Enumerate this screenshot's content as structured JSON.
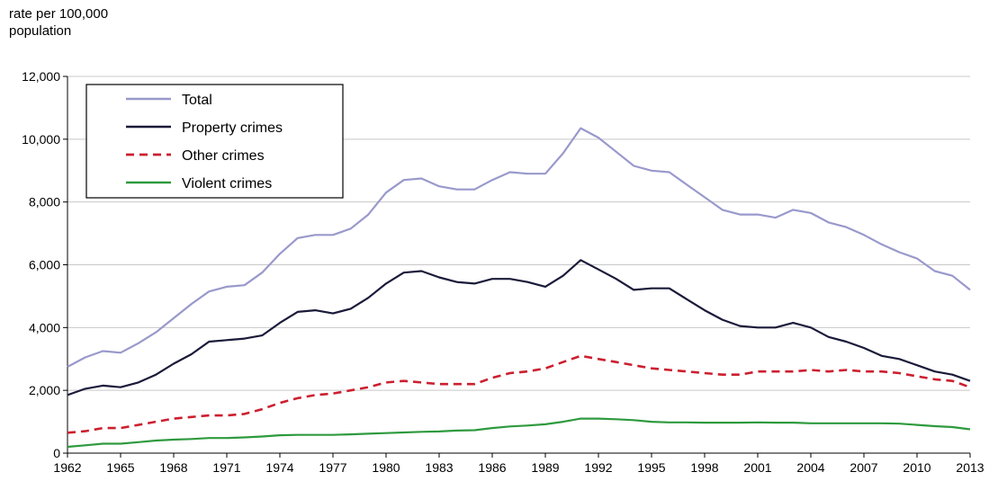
{
  "chart_data": {
    "type": "line",
    "ylabel_line1": "rate per 100,000",
    "ylabel_line2": "population",
    "ylim": [
      0,
      12000
    ],
    "y_ticks": [
      0,
      2000,
      4000,
      6000,
      8000,
      10000,
      12000
    ],
    "y_tick_labels": [
      "0",
      "2,000",
      "4,000",
      "6,000",
      "8,000",
      "10,000",
      "12,000"
    ],
    "x_tick_labels": [
      "1962",
      "1965",
      "1968",
      "1971",
      "1974",
      "1977",
      "1980",
      "1983",
      "1986",
      "1989",
      "1992",
      "1995",
      "1998",
      "2001",
      "2004",
      "2007",
      "2010",
      "2013"
    ],
    "grid": "horizontal",
    "legend_position": "top-left",
    "x": [
      1962,
      1963,
      1964,
      1965,
      1966,
      1967,
      1968,
      1969,
      1970,
      1971,
      1972,
      1973,
      1974,
      1975,
      1976,
      1977,
      1978,
      1979,
      1980,
      1981,
      1982,
      1983,
      1984,
      1985,
      1986,
      1987,
      1988,
      1989,
      1990,
      1991,
      1992,
      1993,
      1994,
      1995,
      1996,
      1997,
      1998,
      1999,
      2000,
      2001,
      2002,
      2003,
      2004,
      2005,
      2006,
      2007,
      2008,
      2009,
      2010,
      2011,
      2012,
      2013
    ],
    "series": [
      {
        "name": "Total",
        "color": "#9999cc",
        "style": "solid",
        "values": [
          2750,
          3050,
          3250,
          3200,
          3500,
          3850,
          4300,
          4750,
          5150,
          5300,
          5350,
          5750,
          6350,
          6850,
          6950,
          6950,
          7150,
          7600,
          8300,
          8700,
          8750,
          8500,
          8400,
          8400,
          8700,
          8950,
          8900,
          8900,
          9550,
          10350,
          10050,
          9600,
          9150,
          9000,
          8950,
          8550,
          8150,
          7750,
          7600,
          7600,
          7500,
          7750,
          7650,
          7350,
          7200,
          6950,
          6650,
          6400,
          6200,
          5800,
          5650,
          5200
        ]
      },
      {
        "name": "Property crimes",
        "color": "#1a1a3a",
        "style": "solid",
        "values": [
          1850,
          2050,
          2150,
          2100,
          2250,
          2500,
          2850,
          3150,
          3550,
          3600,
          3650,
          3750,
          4150,
          4500,
          4550,
          4450,
          4600,
          4950,
          5400,
          5750,
          5800,
          5600,
          5450,
          5400,
          5550,
          5550,
          5450,
          5300,
          5650,
          6150,
          5850,
          5550,
          5200,
          5250,
          5250,
          4900,
          4550,
          4250,
          4050,
          4000,
          4000,
          4150,
          4000,
          3700,
          3550,
          3350,
          3100,
          3000,
          2800,
          2600,
          2500,
          2300
        ]
      },
      {
        "name": "Other crimes",
        "color": "#cc1f2f",
        "style": "dashed",
        "values": [
          650,
          700,
          800,
          800,
          900,
          1000,
          1100,
          1150,
          1200,
          1200,
          1250,
          1400,
          1600,
          1750,
          1850,
          1900,
          2000,
          2100,
          2250,
          2300,
          2250,
          2200,
          2200,
          2200,
          2400,
          2550,
          2600,
          2700,
          2900,
          3100,
          3000,
          2900,
          2800,
          2700,
          2650,
          2600,
          2550,
          2500,
          2500,
          2600,
          2600,
          2600,
          2650,
          2600,
          2650,
          2600,
          2600,
          2550,
          2450,
          2350,
          2300,
          2100
        ]
      },
      {
        "name": "Violent crimes",
        "color": "#2e9a3e",
        "style": "solid",
        "values": [
          200,
          250,
          300,
          300,
          350,
          400,
          430,
          450,
          480,
          480,
          500,
          530,
          570,
          580,
          580,
          580,
          600,
          620,
          640,
          660,
          680,
          690,
          720,
          730,
          800,
          850,
          880,
          920,
          1000,
          1100,
          1100,
          1080,
          1050,
          1000,
          980,
          980,
          970,
          970,
          970,
          980,
          970,
          970,
          950,
          950,
          950,
          950,
          950,
          940,
          900,
          860,
          830,
          760
        ]
      }
    ]
  }
}
